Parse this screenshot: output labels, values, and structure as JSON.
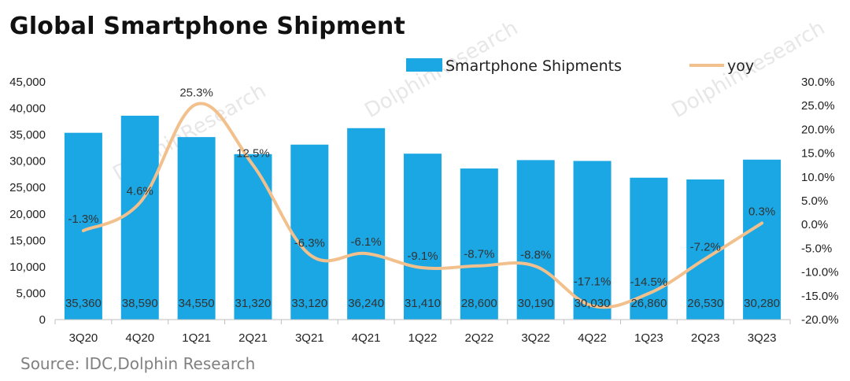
{
  "title": "Global Smartphone Shipment",
  "source": "Source: IDC,Dolphin Research",
  "watermark": "DolphinResearch",
  "colors": {
    "bar": "#1aa7e4",
    "line": "#f2c08c"
  },
  "chart_data": {
    "type": "bar",
    "title": "Global Smartphone Shipment",
    "categories": [
      "3Q20",
      "4Q20",
      "1Q21",
      "2Q21",
      "3Q21",
      "4Q21",
      "1Q22",
      "2Q22",
      "3Q22",
      "4Q22",
      "1Q23",
      "2Q23",
      "3Q23"
    ],
    "series": [
      {
        "name": "Smartphone Shipments",
        "type": "bar",
        "axis": "left",
        "values": [
          35360,
          38590,
          34550,
          31320,
          33120,
          36240,
          31410,
          28600,
          30190,
          30030,
          26860,
          26530,
          30280
        ],
        "labels": [
          "35,360",
          "38,590",
          "34,550",
          "31,320",
          "33,120",
          "36,240",
          "31,410",
          "28,600",
          "30,190",
          "30,030",
          "26,860",
          "26,530",
          "30,280"
        ]
      },
      {
        "name": "yoy",
        "type": "line",
        "axis": "right",
        "values": [
          -1.3,
          4.6,
          25.3,
          12.5,
          -6.3,
          -6.1,
          -9.1,
          -8.7,
          -8.8,
          -17.1,
          -14.5,
          -7.2,
          0.3
        ],
        "labels": [
          "-1.3%",
          "4.6%",
          "25.3%",
          "12.5%",
          "-6.3%",
          "-6.1%",
          "-9.1%",
          "-8.7%",
          "-8.8%",
          "-17.1%",
          "-14.5%",
          "-7.2%",
          "0.3%"
        ]
      }
    ],
    "y_left": {
      "lim": [
        0,
        45000
      ],
      "ticks": [
        0,
        5000,
        10000,
        15000,
        20000,
        25000,
        30000,
        35000,
        40000,
        45000
      ],
      "tick_labels": [
        "0",
        "5,000",
        "10,000",
        "15,000",
        "20,000",
        "25,000",
        "30,000",
        "35,000",
        "40,000",
        "45,000"
      ]
    },
    "y_right": {
      "lim": [
        -20,
        30
      ],
      "ticks": [
        -20,
        -15,
        -10,
        -5,
        0,
        5,
        10,
        15,
        20,
        25,
        30
      ],
      "tick_labels": [
        "-20.0%",
        "-15.0%",
        "-10.0%",
        "-5.0%",
        "0.0%",
        "5.0%",
        "10.0%",
        "15.0%",
        "20.0%",
        "25.0%",
        "30.0%"
      ]
    },
    "legend_position": "top",
    "grid": false
  }
}
